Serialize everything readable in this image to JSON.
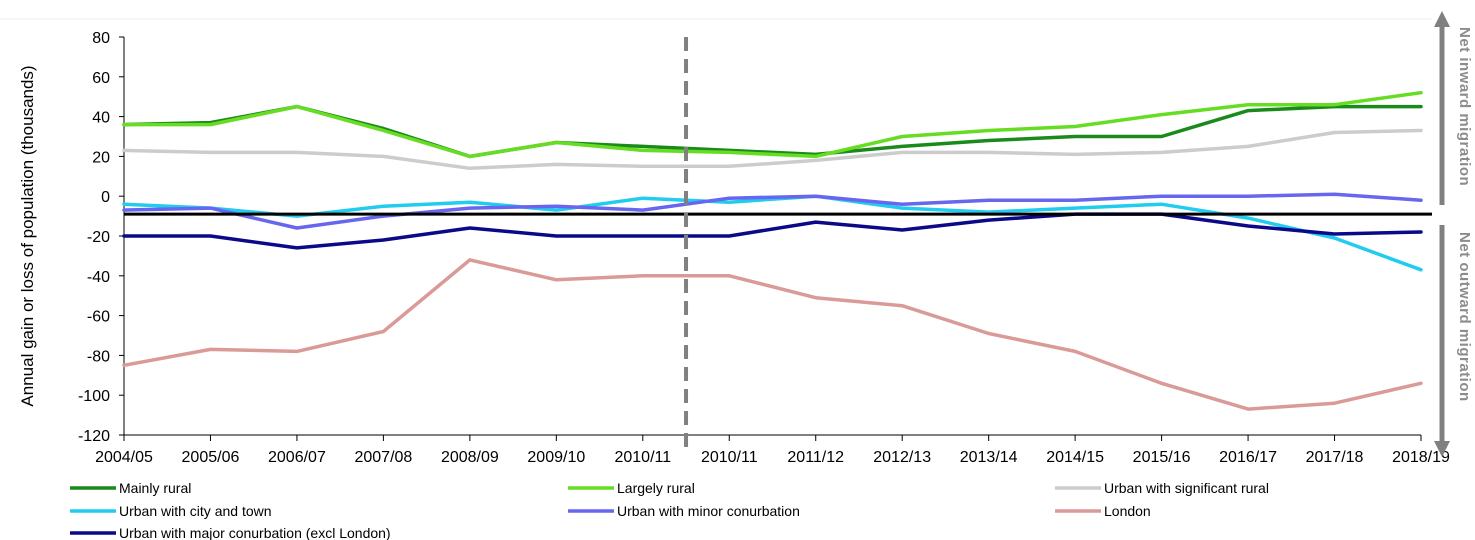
{
  "chart_data": {
    "type": "line",
    "ylabel": "Annual gain or loss of population (thousands)",
    "ylim": [
      -120,
      80
    ],
    "yticks": [
      80,
      60,
      40,
      20,
      0,
      -20,
      -40,
      -60,
      -80,
      -100,
      -120
    ],
    "categories": [
      "2004/05",
      "2005/06",
      "2006/07",
      "2007/08",
      "2008/09",
      "2009/10",
      "2010/11",
      "2010/11",
      "2011/12",
      "2012/13",
      "2013/14",
      "2014/15",
      "2015/16",
      "2016/17",
      "2017/18",
      "2018/19"
    ],
    "reference_line_y": -9,
    "break_position": 6.5,
    "series": [
      {
        "name": "Mainly rural",
        "color": "#1a8a1a",
        "values": [
          36,
          37,
          45,
          34,
          20,
          27,
          25,
          23,
          21,
          25,
          28,
          30,
          30,
          43,
          45,
          45
        ]
      },
      {
        "name": "Largely rural",
        "color": "#66dd22",
        "values": [
          36,
          36,
          45,
          33,
          20,
          27,
          23,
          22,
          20,
          30,
          33,
          35,
          41,
          46,
          46,
          52
        ]
      },
      {
        "name": "Urban with significant rural",
        "color": "#cccccc",
        "values": [
          23,
          22,
          22,
          20,
          14,
          16,
          15,
          15,
          18,
          22,
          22,
          21,
          22,
          25,
          32,
          33
        ]
      },
      {
        "name": "Urban with city and town",
        "color": "#22ccee",
        "values": [
          -4,
          -6,
          -10,
          -5,
          -3,
          -7,
          -1,
          -3,
          0,
          -6,
          -8,
          -6,
          -4,
          -11,
          -21,
          -37
        ]
      },
      {
        "name": "Urban with minor conurbation",
        "color": "#6666ee",
        "values": [
          -7,
          -6,
          -16,
          -10,
          -6,
          -5,
          -7,
          -1,
          0,
          -4,
          -2,
          -2,
          0,
          0,
          1,
          -2
        ]
      },
      {
        "name": "London",
        "color": "#d99a98",
        "values": [
          -85,
          -77,
          -78,
          -68,
          -32,
          -42,
          -40,
          -40,
          -51,
          -55,
          -69,
          -78,
          -94,
          -107,
          -104,
          -94
        ]
      },
      {
        "name": "Urban with major conurbation (excl London)",
        "color": "#0a0a88",
        "values": [
          -20,
          -20,
          -26,
          -22,
          -16,
          -20,
          -20,
          -20,
          -13,
          -17,
          -12,
          -9,
          -9,
          -15,
          -19,
          -18
        ]
      }
    ],
    "annotations": {
      "top": "Net inward migration",
      "bottom": "Net outward migration"
    }
  }
}
